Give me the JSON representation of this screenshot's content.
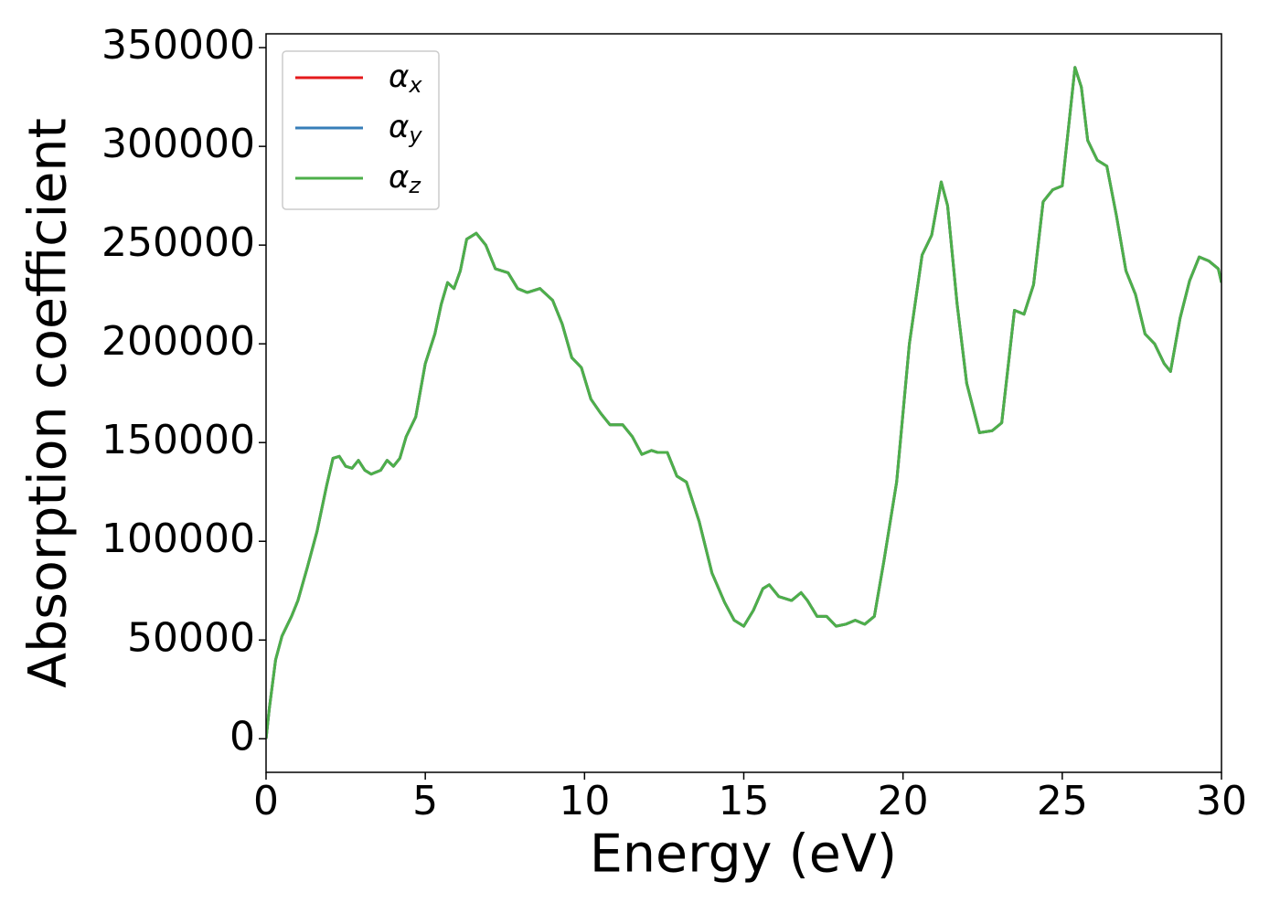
{
  "chart_data": {
    "type": "line",
    "xlabel": "Energy (eV)",
    "ylabel": "Absorption coefficient",
    "x": [
      0,
      0.1,
      0.3,
      0.5,
      0.8,
      1.0,
      1.3,
      1.6,
      1.9,
      2.1,
      2.3,
      2.5,
      2.7,
      2.9,
      3.1,
      3.3,
      3.6,
      3.8,
      4.0,
      4.2,
      4.4,
      4.7,
      5.0,
      5.3,
      5.5,
      5.7,
      5.9,
      6.1,
      6.3,
      6.6,
      6.9,
      7.2,
      7.6,
      7.9,
      8.2,
      8.6,
      9.0,
      9.3,
      9.6,
      9.9,
      10.2,
      10.5,
      10.8,
      11.2,
      11.5,
      11.8,
      12.1,
      12.3,
      12.6,
      12.9,
      13.2,
      13.6,
      14.0,
      14.4,
      14.7,
      15.0,
      15.3,
      15.6,
      15.8,
      16.1,
      16.5,
      16.8,
      17.0,
      17.3,
      17.6,
      17.9,
      18.2,
      18.5,
      18.8,
      19.1,
      19.4,
      19.8,
      20.2,
      20.6,
      20.9,
      21.2,
      21.4,
      21.7,
      22.0,
      22.4,
      22.8,
      23.1,
      23.5,
      23.8,
      24.1,
      24.4,
      24.7,
      25.0,
      25.4,
      25.6,
      25.8,
      26.1,
      26.4,
      26.7,
      27.0,
      27.3,
      27.6,
      27.9,
      28.2,
      28.4,
      28.7,
      29.0,
      29.3,
      29.6,
      29.9,
      30.0
    ],
    "series": [
      {
        "name": "αx",
        "color": "#e41a1c",
        "values": [
          0,
          15000,
          40000,
          52000,
          62000,
          70000,
          87000,
          105000,
          128000,
          142000,
          143000,
          138000,
          137000,
          141000,
          136000,
          134000,
          136000,
          141000,
          138000,
          142000,
          153000,
          163000,
          190000,
          205000,
          220000,
          231000,
          228000,
          237000,
          253000,
          256000,
          250000,
          238000,
          236000,
          228000,
          226000,
          228000,
          222000,
          210000,
          193000,
          188000,
          172000,
          165000,
          159000,
          159000,
          153000,
          144000,
          146000,
          145000,
          145000,
          133000,
          130000,
          110000,
          84000,
          69000,
          60000,
          57000,
          65000,
          76000,
          78000,
          72000,
          70000,
          74000,
          70000,
          62000,
          62000,
          57000,
          58000,
          60000,
          58000,
          62000,
          90000,
          130000,
          200000,
          245000,
          255000,
          282000,
          270000,
          220000,
          180000,
          155000,
          156000,
          160000,
          217000,
          215000,
          230000,
          272000,
          278000,
          280000,
          340000,
          330000,
          303000,
          293000,
          290000,
          265000,
          237000,
          225000,
          205000,
          200000,
          190000,
          186000,
          213000,
          232000,
          244000,
          242000,
          238000,
          231000
        ]
      },
      {
        "name": "αy",
        "color": "#377eb8",
        "values": [
          0,
          15000,
          40000,
          52000,
          62000,
          70000,
          87000,
          105000,
          128000,
          142000,
          143000,
          138000,
          137000,
          141000,
          136000,
          134000,
          136000,
          141000,
          138000,
          142000,
          153000,
          163000,
          190000,
          205000,
          220000,
          231000,
          228000,
          237000,
          253000,
          256000,
          250000,
          238000,
          236000,
          228000,
          226000,
          228000,
          222000,
          210000,
          193000,
          188000,
          172000,
          165000,
          159000,
          159000,
          153000,
          144000,
          146000,
          145000,
          145000,
          133000,
          130000,
          110000,
          84000,
          69000,
          60000,
          57000,
          65000,
          76000,
          78000,
          72000,
          70000,
          74000,
          70000,
          62000,
          62000,
          57000,
          58000,
          60000,
          58000,
          62000,
          90000,
          130000,
          200000,
          245000,
          255000,
          282000,
          270000,
          220000,
          180000,
          155000,
          156000,
          160000,
          217000,
          215000,
          230000,
          272000,
          278000,
          280000,
          340000,
          330000,
          303000,
          293000,
          290000,
          265000,
          237000,
          225000,
          205000,
          200000,
          190000,
          186000,
          213000,
          232000,
          244000,
          242000,
          238000,
          231000
        ]
      },
      {
        "name": "αz",
        "color": "#4daf4a",
        "values": [
          0,
          15000,
          40000,
          52000,
          62000,
          70000,
          87000,
          105000,
          128000,
          142000,
          143000,
          138000,
          137000,
          141000,
          136000,
          134000,
          136000,
          141000,
          138000,
          142000,
          153000,
          163000,
          190000,
          205000,
          220000,
          231000,
          228000,
          237000,
          253000,
          256000,
          250000,
          238000,
          236000,
          228000,
          226000,
          228000,
          222000,
          210000,
          193000,
          188000,
          172000,
          165000,
          159000,
          159000,
          153000,
          144000,
          146000,
          145000,
          145000,
          133000,
          130000,
          110000,
          84000,
          69000,
          60000,
          57000,
          65000,
          76000,
          78000,
          72000,
          70000,
          74000,
          70000,
          62000,
          62000,
          57000,
          58000,
          60000,
          58000,
          62000,
          90000,
          130000,
          200000,
          245000,
          255000,
          282000,
          270000,
          220000,
          180000,
          155000,
          156000,
          160000,
          217000,
          215000,
          230000,
          272000,
          278000,
          280000,
          340000,
          330000,
          303000,
          293000,
          290000,
          265000,
          237000,
          225000,
          205000,
          200000,
          190000,
          186000,
          213000,
          232000,
          244000,
          242000,
          238000,
          231000
        ]
      }
    ],
    "xlim": [
      0,
      30
    ],
    "xticks": [
      0,
      5,
      10,
      15,
      20,
      25,
      30
    ],
    "ylim": [
      -17000,
      357000
    ],
    "yticks": [
      0,
      50000,
      100000,
      150000,
      200000,
      250000,
      300000,
      350000
    ],
    "legend": "upper left"
  }
}
